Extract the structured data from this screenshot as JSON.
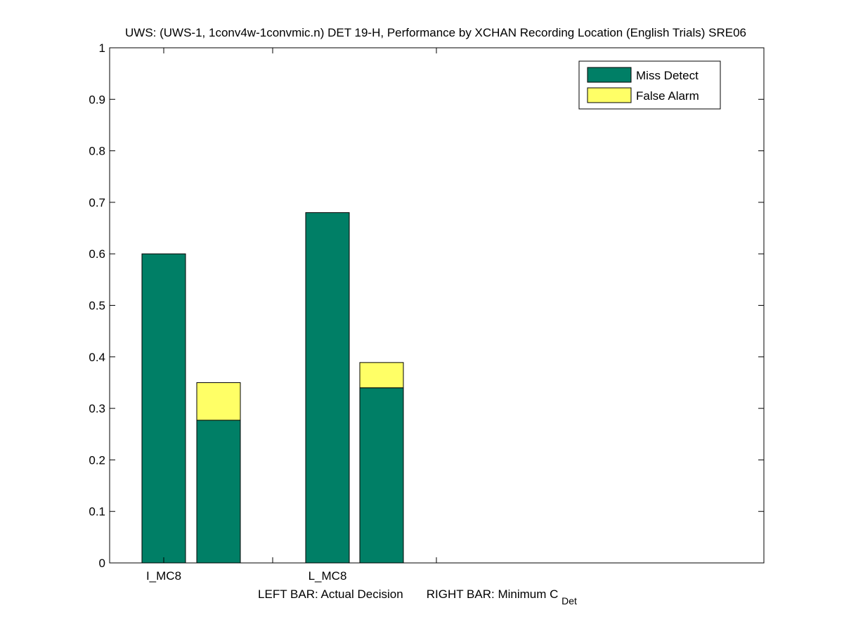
{
  "chart_data": {
    "type": "bar",
    "stacked": true,
    "title": "UWS: (UWS-1, 1conv4w-1convmic.n) DET 19-H,  Performance by XCHAN Recording Location (English Trials) SRE06",
    "xlabel": {
      "left_part": "LEFT BAR: Actual Decision",
      "right_part": "RIGHT BAR: Minimum C",
      "right_subscript": "Det"
    },
    "ylabel": "",
    "ylim": [
      0,
      1
    ],
    "y_ticks": [
      "0",
      "0.1",
      "0.2",
      "0.3",
      "0.4",
      "0.5",
      "0.6",
      "0.7",
      "0.8",
      "0.9",
      "1"
    ],
    "x_ticks": [
      "",
      "",
      "",
      ""
    ],
    "categories": [
      "I_MC8",
      "L_MC8"
    ],
    "legend_position": "top-right",
    "grid": false,
    "colors": {
      "miss": "#007f66",
      "false_alarm": "#ffff66",
      "axis": "#000000",
      "background": "#ffffff"
    },
    "series": [
      {
        "name": "Miss Detect",
        "color": "#007f66",
        "actual_decision": [
          0.6,
          0.68
        ],
        "minimum_cdet": [
          0.277,
          0.34
        ]
      },
      {
        "name": "False Alarm",
        "color": "#ffff66",
        "actual_decision": [
          0.0,
          0.0
        ],
        "minimum_cdet": [
          0.073,
          0.049
        ]
      }
    ]
  }
}
